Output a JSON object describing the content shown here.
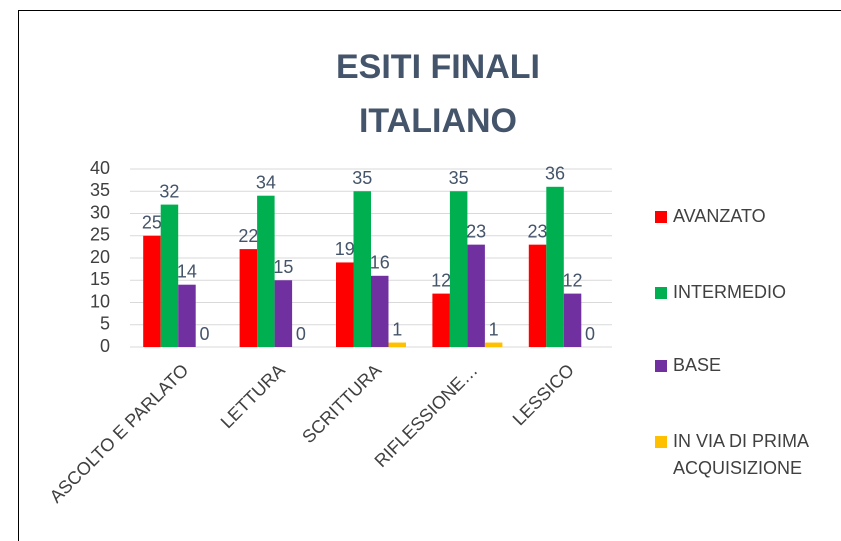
{
  "chart_data": {
    "type": "bar",
    "title": "ESITI FINALI ITALIANO",
    "categories": [
      "ASCOLTO E PARLATO",
      "LETTURA",
      "SCRITTURA",
      "RIFLESSIONE…",
      "LESSICO"
    ],
    "series": [
      {
        "name": "AVANZATO",
        "color": "#ff0000",
        "values": [
          25,
          22,
          19,
          12,
          23
        ]
      },
      {
        "name": "INTERMEDIO",
        "color": "#00b050",
        "values": [
          32,
          34,
          35,
          35,
          36
        ]
      },
      {
        "name": "BASE",
        "color": "#7030a0",
        "values": [
          14,
          15,
          16,
          23,
          12
        ]
      },
      {
        "name": "IN VIA DI PRIMA ACQUISIZIONE",
        "color": "#ffc000",
        "values": [
          0,
          0,
          1,
          1,
          0
        ]
      }
    ],
    "ylim": [
      0,
      40
    ],
    "yticks": [
      0,
      5,
      10,
      15,
      20,
      25,
      30,
      35,
      40
    ],
    "grid": true,
    "legend": "right"
  }
}
